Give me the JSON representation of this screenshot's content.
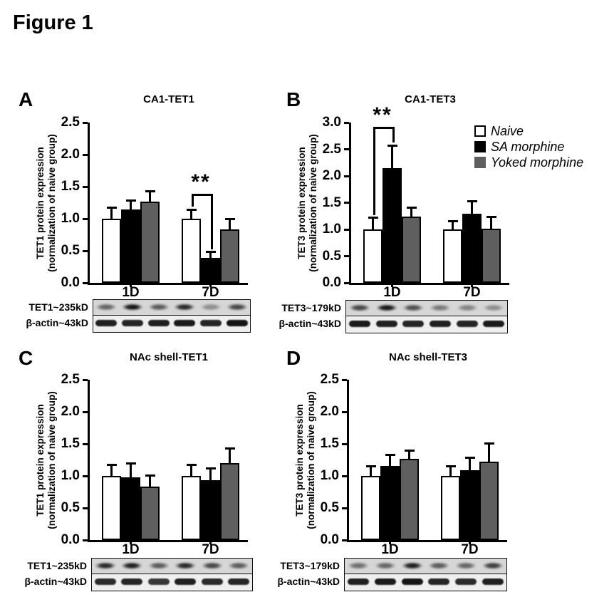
{
  "figure_title": "Figure 1",
  "colors": {
    "background": "#ffffff",
    "axis": "#000000",
    "naive_fill": "#ffffff",
    "sa_morphine_fill": "#000000",
    "yoked_morphine_fill": "#5f5f5f"
  },
  "legend": {
    "items": [
      {
        "label": "Naive",
        "fill": "#ffffff",
        "border": true
      },
      {
        "label": "SA morphine",
        "fill": "#000000",
        "border": true
      },
      {
        "label": "Yoked morphine",
        "fill": "#5f5f5f",
        "border": false
      }
    ]
  },
  "chart_data": [
    {
      "panel_label": "A",
      "type": "bar",
      "title": "CA1-TET1",
      "ylabel_line1": "TET1 protein expression",
      "ylabel_line2": "(normalization of naive group)",
      "ylim": [
        0,
        2.5
      ],
      "ytick_step": 0.5,
      "categories": [
        "1D",
        "7D"
      ],
      "series": [
        {
          "name": "Naive",
          "fill": "#ffffff",
          "values": [
            1.0,
            1.0
          ],
          "errors": [
            0.17,
            0.14
          ]
        },
        {
          "name": "SA morphine",
          "fill": "#000000",
          "values": [
            1.14,
            0.39
          ],
          "errors": [
            0.14,
            0.09
          ]
        },
        {
          "name": "Yoked morphine",
          "fill": "#5f5f5f",
          "values": [
            1.27,
            0.83
          ],
          "errors": [
            0.16,
            0.16
          ]
        }
      ],
      "significance": {
        "label": "**",
        "category_index": 1,
        "series_a": 0,
        "series_b": 1,
        "bar_y": 1.39
      },
      "blot": {
        "rows": [
          {
            "label": "TET1~235kD",
            "bands": [
              0.55,
              0.95,
              0.6,
              0.85,
              0.35,
              0.7
            ]
          },
          {
            "label": "β-actin~43kD",
            "bands": [
              0.9,
              0.88,
              0.9,
              0.92,
              0.88,
              0.95
            ]
          }
        ]
      }
    },
    {
      "panel_label": "B",
      "type": "bar",
      "title": "CA1-TET3",
      "ylabel_line1": "TET3 protein expression",
      "ylabel_line2": "(normalization of naive group)",
      "ylim": [
        0,
        3.0
      ],
      "ytick_step": 0.5,
      "categories": [
        "1D",
        "7D"
      ],
      "series": [
        {
          "name": "Naive",
          "fill": "#ffffff",
          "values": [
            1.0,
            1.0
          ],
          "errors": [
            0.22,
            0.16
          ]
        },
        {
          "name": "SA morphine",
          "fill": "#000000",
          "values": [
            2.15,
            1.3
          ],
          "errors": [
            0.42,
            0.23
          ]
        },
        {
          "name": "Yoked morphine",
          "fill": "#5f5f5f",
          "values": [
            1.24,
            1.02
          ],
          "errors": [
            0.17,
            0.22
          ]
        }
      ],
      "significance": {
        "label": "**",
        "category_index": 0,
        "series_a": 0,
        "series_b": 1,
        "bar_y": 2.92
      },
      "blot": {
        "rows": [
          {
            "label": "TET3~179kD",
            "bands": [
              0.7,
              0.95,
              0.65,
              0.45,
              0.4,
              0.35
            ]
          },
          {
            "label": "β-actin~43kD",
            "bands": [
              0.92,
              0.9,
              0.88,
              0.9,
              0.88,
              0.92
            ]
          }
        ]
      }
    },
    {
      "panel_label": "C",
      "type": "bar",
      "title": "NAc shell-TET1",
      "ylabel_line1": "TET1 protein expression",
      "ylabel_line2": "(normalization of naive group)",
      "ylim": [
        0,
        2.5
      ],
      "ytick_step": 0.5,
      "categories": [
        "1D",
        "7D"
      ],
      "series": [
        {
          "name": "Naive",
          "fill": "#ffffff",
          "values": [
            1.0,
            1.0
          ],
          "errors": [
            0.17,
            0.17
          ]
        },
        {
          "name": "SA morphine",
          "fill": "#000000",
          "values": [
            0.98,
            0.93
          ],
          "errors": [
            0.21,
            0.19
          ]
        },
        {
          "name": "Yoked morphine",
          "fill": "#5f5f5f",
          "values": [
            0.83,
            1.2
          ],
          "errors": [
            0.18,
            0.23
          ]
        }
      ],
      "significance": null,
      "blot": {
        "rows": [
          {
            "label": "TET1~235kD",
            "bands": [
              0.85,
              0.9,
              0.6,
              0.85,
              0.7,
              0.6
            ]
          },
          {
            "label": "β-actin~43kD",
            "bands": [
              0.85,
              0.88,
              0.8,
              0.9,
              0.85,
              0.88
            ]
          }
        ]
      }
    },
    {
      "panel_label": "D",
      "type": "bar",
      "title": "NAc shell-TET3",
      "ylabel_line1": "TET3 protein expression",
      "ylabel_line2": "(normalization of naive group)",
      "ylim": [
        0,
        2.5
      ],
      "ytick_step": 0.5,
      "categories": [
        "1D",
        "7D"
      ],
      "series": [
        {
          "name": "Naive",
          "fill": "#ffffff",
          "values": [
            1.0,
            1.0
          ],
          "errors": [
            0.15,
            0.15
          ]
        },
        {
          "name": "SA morphine",
          "fill": "#000000",
          "values": [
            1.16,
            1.09
          ],
          "errors": [
            0.17,
            0.19
          ]
        },
        {
          "name": "Yoked morphine",
          "fill": "#5f5f5f",
          "values": [
            1.27,
            1.22
          ],
          "errors": [
            0.13,
            0.29
          ]
        }
      ],
      "significance": null,
      "blot": {
        "rows": [
          {
            "label": "TET3~179kD",
            "bands": [
              0.5,
              0.55,
              0.9,
              0.6,
              0.55,
              0.75
            ]
          },
          {
            "label": "β-actin~43kD",
            "bands": [
              0.9,
              0.92,
              0.95,
              0.88,
              0.85,
              0.9
            ]
          }
        ]
      }
    }
  ]
}
